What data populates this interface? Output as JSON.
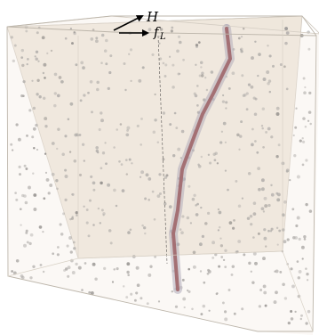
{
  "labels": {
    "force_h": "H",
    "force_f": "f",
    "force_f_sub": "L"
  },
  "colors": {
    "box_fill": "#f3ece2",
    "box_edge": "#c9c2b8",
    "particle": "#8a8a8a",
    "particle_dark": "#555555",
    "chain_core": "#7a2f3a",
    "chain_halo": "#8e8aa6",
    "arrow": "#000000"
  },
  "icons": {
    "force_h_arrow": "arrow-right-up",
    "force_f_arrow": "arrow-right"
  }
}
